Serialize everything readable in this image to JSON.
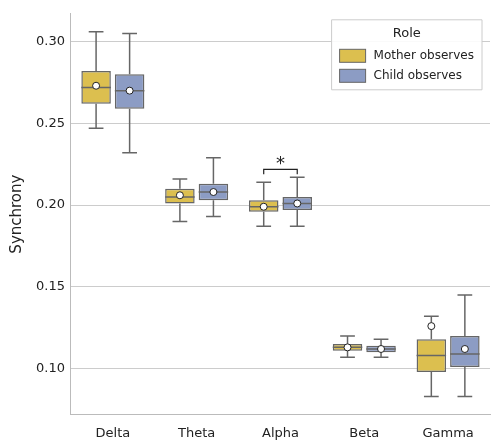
{
  "chart_data": {
    "type": "boxplot",
    "y_label": "Synchrony",
    "legend_title": "Role",
    "legend": "upper right",
    "grid": true,
    "categories": [
      "Delta",
      "Theta",
      "Alpha",
      "Beta",
      "Gamma"
    ],
    "series": [
      {
        "name": "Mother observes",
        "color": "#dcbf4f",
        "whisker_low": [
          0.247,
          0.19,
          0.187,
          0.107,
          0.083
        ],
        "q1": [
          0.262,
          0.201,
          0.196,
          0.111,
          0.098
        ],
        "median": [
          0.272,
          0.205,
          0.199,
          0.113,
          0.108
        ],
        "q3": [
          0.282,
          0.21,
          0.203,
          0.115,
          0.118
        ],
        "whisker_high": [
          0.306,
          0.216,
          0.214,
          0.12,
          0.132
        ],
        "mean": [
          0.273,
          0.206,
          0.199,
          0.113,
          0.126
        ]
      },
      {
        "name": "Child observes",
        "color": "#8c9cc4",
        "whisker_low": [
          0.232,
          0.193,
          0.187,
          0.107,
          0.083
        ],
        "q1": [
          0.259,
          0.203,
          0.197,
          0.11,
          0.101
        ],
        "median": [
          0.27,
          0.208,
          0.201,
          0.112,
          0.109
        ],
        "q3": [
          0.28,
          0.213,
          0.205,
          0.114,
          0.12
        ],
        "whisker_high": [
          0.305,
          0.229,
          0.217,
          0.118,
          0.145
        ],
        "mean": [
          0.27,
          0.208,
          0.201,
          0.112,
          0.112
        ]
      }
    ],
    "annotations": [
      {
        "text": "*",
        "category": "Alpha"
      }
    ],
    "ylim": [
      0.072,
      0.317
    ],
    "yticks": [
      {
        "value": 0.1,
        "label": "0.10"
      },
      0.15,
      {
        "value": 0.2,
        "label": "0.20"
      },
      0.25,
      {
        "value": 0.3,
        "label": "0.30"
      }
    ]
  }
}
